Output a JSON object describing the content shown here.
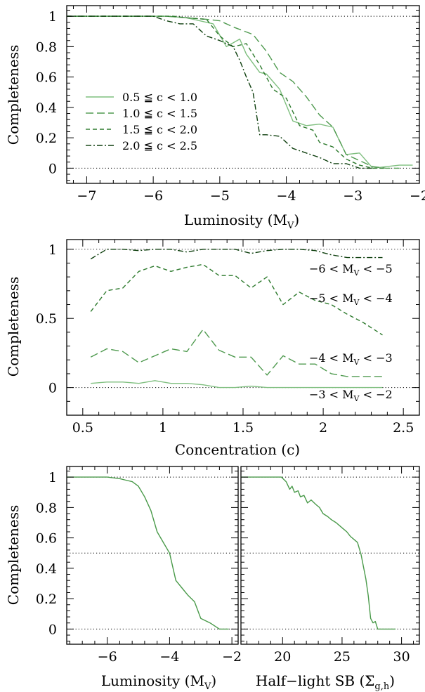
{
  "colors": {
    "c1": "#7fbf7f",
    "c2": "#4f9a4f",
    "c3": "#2d7a2d",
    "c4": "#0e3f0e",
    "bottom": "#4a9a4a"
  },
  "chart_data": [
    {
      "id": "p1",
      "type": "line",
      "xlabel": "Luminosity (M",
      "xlabel_sub": "V",
      "xlabel_end": ")",
      "ylabel": "Completeness",
      "xlim": [
        -7.3,
        -2.0
      ],
      "ylim": [
        -0.1,
        1.07
      ],
      "xticks": [
        -7,
        -6,
        -5,
        -4,
        -3,
        -2
      ],
      "yticks": [
        0,
        0.2,
        0.4,
        0.6,
        0.8,
        1
      ],
      "refs": [
        0,
        1
      ],
      "series": [
        {
          "name": "0.5 ≦ c < 1.0",
          "color": "c1",
          "dash": "",
          "x": [
            -7.3,
            -6.3,
            -5.8,
            -5.5,
            -5.3,
            -5.1,
            -4.9,
            -4.7,
            -4.6,
            -4.4,
            -4.3,
            -4.1,
            -3.9,
            -3.7,
            -3.5,
            -3.3,
            -3.1,
            -2.9,
            -2.7,
            -2.5,
            -2.3,
            -2.1
          ],
          "y": [
            1,
            1,
            1,
            0.99,
            0.97,
            0.95,
            0.8,
            0.85,
            0.75,
            0.63,
            0.62,
            0.52,
            0.31,
            0.28,
            0.29,
            0.27,
            0.09,
            0.1,
            0.0,
            0.01,
            0.02,
            0.02
          ]
        },
        {
          "name": "1.0 ≦ c < 1.5",
          "color": "c2",
          "dash": "11 5",
          "x": [
            -7.3,
            -6.1,
            -5.8,
            -5.5,
            -5.2,
            -5.0,
            -4.8,
            -4.5,
            -4.3,
            -4.1,
            -3.9,
            -3.7,
            -3.5,
            -3.3,
            -3.1,
            -2.9,
            -2.7,
            -2.5,
            -2.3
          ],
          "y": [
            1,
            1,
            1,
            0.99,
            0.98,
            0.97,
            0.93,
            0.88,
            0.77,
            0.63,
            0.57,
            0.47,
            0.35,
            0.27,
            0.09,
            0.05,
            0.01,
            0.0,
            0.0
          ]
        },
        {
          "name": "1.5 ≦ c < 2.0",
          "color": "c3",
          "dash": "6 4",
          "x": [
            -7.3,
            -6.0,
            -5.7,
            -5.5,
            -5.2,
            -5.0,
            -4.8,
            -4.6,
            -4.4,
            -4.2,
            -4.0,
            -3.8,
            -3.6,
            -3.5,
            -3.3,
            -3.1,
            -2.9,
            -2.7,
            -2.5
          ],
          "y": [
            1,
            1,
            1,
            0.99,
            0.98,
            0.87,
            0.8,
            0.82,
            0.68,
            0.52,
            0.46,
            0.28,
            0.25,
            0.17,
            0.14,
            0.06,
            0.02,
            0.0,
            0.0
          ]
        },
        {
          "name": "2.0 ≦ c < 2.5",
          "color": "c4",
          "dash": "8 3 2 3",
          "x": [
            -7.3,
            -6.0,
            -5.8,
            -5.6,
            -5.4,
            -5.2,
            -5.0,
            -4.8,
            -4.7,
            -4.6,
            -4.5,
            -4.4,
            -4.3,
            -4.1,
            -3.9,
            -3.7,
            -3.5,
            -3.3,
            -3.1,
            -2.9,
            -2.7
          ],
          "y": [
            1,
            1,
            0.97,
            0.95,
            0.95,
            0.87,
            0.84,
            0.8,
            0.71,
            0.6,
            0.5,
            0.22,
            0.22,
            0.21,
            0.13,
            0.1,
            0.07,
            0.03,
            0.03,
            0.0,
            0.0
          ]
        }
      ],
      "legend": "lower-left"
    },
    {
      "id": "p2",
      "type": "line",
      "xlabel": "Concentration (c)",
      "ylabel": "Completeness",
      "xlim": [
        0.4,
        2.6
      ],
      "ylim": [
        -0.2,
        1.07
      ],
      "xticks": [
        0.5,
        1,
        1.5,
        2,
        2.5
      ],
      "yticks": [
        0,
        0.5,
        1
      ],
      "refs": [
        0,
        1
      ],
      "series": [
        {
          "name": "−6 < M",
          "sub": "V",
          "end": " < −5",
          "color": "c4",
          "dash": "8 3 2 3",
          "x": [
            0.55,
            0.65,
            0.75,
            0.85,
            0.95,
            1.05,
            1.15,
            1.25,
            1.35,
            1.45,
            1.55,
            1.65,
            1.75,
            1.85,
            1.95,
            2.05,
            2.15,
            2.25,
            2.37
          ],
          "y": [
            0.93,
            1.0,
            1.0,
            0.99,
            1.0,
            1.0,
            0.98,
            1.0,
            1.0,
            1.0,
            0.97,
            0.99,
            1.0,
            1.0,
            0.99,
            0.96,
            0.94,
            0.94,
            0.94
          ]
        },
        {
          "name": "−5 < M",
          "sub": "V",
          "end": " < −4",
          "color": "c3",
          "dash": "6 4",
          "x": [
            0.55,
            0.65,
            0.75,
            0.85,
            0.95,
            1.05,
            1.15,
            1.25,
            1.35,
            1.45,
            1.55,
            1.65,
            1.75,
            1.85,
            1.95,
            2.05,
            2.15,
            2.25,
            2.37
          ],
          "y": [
            0.55,
            0.7,
            0.72,
            0.84,
            0.88,
            0.84,
            0.87,
            0.89,
            0.81,
            0.81,
            0.72,
            0.8,
            0.6,
            0.69,
            0.63,
            0.6,
            0.53,
            0.47,
            0.38
          ]
        },
        {
          "name": "−4 < M",
          "sub": "V",
          "end": " < −3",
          "color": "c2",
          "dash": "11 5",
          "x": [
            0.55,
            0.65,
            0.75,
            0.85,
            0.95,
            1.05,
            1.15,
            1.25,
            1.35,
            1.45,
            1.55,
            1.65,
            1.75,
            1.85,
            1.95,
            2.05,
            2.15,
            2.25,
            2.37
          ],
          "y": [
            0.22,
            0.28,
            0.26,
            0.18,
            0.23,
            0.28,
            0.26,
            0.42,
            0.27,
            0.22,
            0.22,
            0.09,
            0.23,
            0.17,
            0.17,
            0.1,
            0.08,
            0.08,
            0.08
          ]
        },
        {
          "name": "−3 < M",
          "sub": "V",
          "end": " < −2",
          "color": "c1",
          "dash": "",
          "x": [
            0.55,
            0.65,
            0.75,
            0.85,
            0.95,
            1.05,
            1.15,
            1.25,
            1.35,
            1.45,
            1.55,
            1.65,
            1.75,
            1.85,
            1.95,
            2.05,
            2.15,
            2.25,
            2.37
          ],
          "y": [
            0.03,
            0.04,
            0.04,
            0.03,
            0.05,
            0.03,
            0.03,
            0.02,
            0.0,
            0.0,
            0.01,
            0.0,
            0.0,
            0.0,
            0.0,
            0.0,
            0.0,
            0.0,
            0.0
          ]
        }
      ]
    },
    {
      "id": "p3",
      "type": "line",
      "xlabel": "Luminosity (M",
      "xlabel_sub": "V",
      "xlabel_end": ")",
      "ylabel": "Completeness",
      "xlim": [
        -7.3,
        -1.8
      ],
      "ylim": [
        -0.1,
        1.07
      ],
      "xticks": [
        -6,
        -4,
        -2
      ],
      "yticks": [
        0,
        0.2,
        0.4,
        0.6,
        0.8,
        1
      ],
      "refs": [
        0,
        0.5,
        1
      ],
      "series": [
        {
          "color": "bottom",
          "dash": "",
          "x": [
            -7.3,
            -6.6,
            -6.0,
            -5.6,
            -5.4,
            -5.2,
            -5.0,
            -4.8,
            -4.6,
            -4.4,
            -4.2,
            -4.0,
            -3.8,
            -3.6,
            -3.4,
            -3.2,
            -3.0,
            -2.7,
            -2.4,
            -2.1
          ],
          "y": [
            1,
            1,
            1,
            0.99,
            0.98,
            0.97,
            0.94,
            0.87,
            0.78,
            0.64,
            0.57,
            0.5,
            0.32,
            0.27,
            0.22,
            0.18,
            0.07,
            0.04,
            0.0,
            0.0
          ]
        }
      ]
    },
    {
      "id": "p4",
      "type": "line",
      "xlabel": "Half−light SB (Σ",
      "xlabel_sub": "g,h",
      "xlabel_end": ")",
      "xlim": [
        16.5,
        31.5
      ],
      "ylim": [
        -0.1,
        1.07
      ],
      "xticks": [
        20,
        25,
        30
      ],
      "refs": [
        0,
        0.5,
        1
      ],
      "series": [
        {
          "color": "bottom",
          "dash": "",
          "x": [
            16.5,
            19.2,
            19.9,
            20.3,
            20.6,
            20.8,
            21.0,
            21.3,
            21.5,
            21.8,
            22.1,
            22.4,
            22.8,
            23.1,
            23.4,
            23.8,
            24.1,
            24.5,
            24.8,
            25.1,
            25.4,
            25.7,
            26.0,
            26.3,
            26.6,
            26.8,
            27.0,
            27.2,
            27.4,
            27.6,
            27.8,
            28.0,
            28.3,
            29.5
          ],
          "y": [
            1,
            1,
            1,
            0.97,
            0.92,
            0.94,
            0.9,
            0.91,
            0.87,
            0.88,
            0.83,
            0.85,
            0.82,
            0.8,
            0.76,
            0.74,
            0.72,
            0.7,
            0.68,
            0.66,
            0.64,
            0.61,
            0.59,
            0.57,
            0.49,
            0.41,
            0.33,
            0.22,
            0.07,
            0.04,
            0.05,
            0.0,
            0.0,
            0.0
          ]
        }
      ]
    }
  ]
}
